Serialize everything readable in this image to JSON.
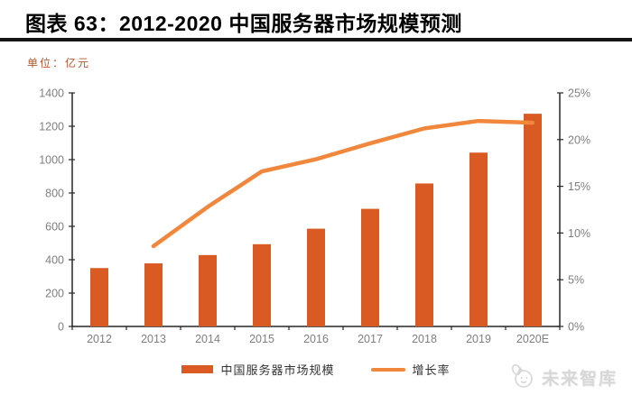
{
  "header": {
    "title": "图表 63：2012-2020 中国服务器市场规模预测"
  },
  "unit_label": "单位：亿元",
  "chart_data": {
    "type": "bar",
    "subtype": "bar+line-combo",
    "title": "图表 63：2012-2020 中国服务器市场规模预测",
    "ylabel_unit": "亿元",
    "categories": [
      "2012",
      "2013",
      "2014",
      "2015",
      "2016",
      "2017",
      "2018",
      "2019",
      "2020E"
    ],
    "series": [
      {
        "name": "中国服务器市场规模",
        "type": "bar",
        "axis": "left",
        "color": "#da5a24",
        "values": [
          350,
          378,
          428,
          493,
          586,
          705,
          857,
          1042,
          1275
        ]
      },
      {
        "name": "增长率",
        "type": "line",
        "axis": "right",
        "color": "#f0873c",
        "values": [
          null,
          8.6,
          12.8,
          16.6,
          17.9,
          19.6,
          21.2,
          22.0,
          21.8
        ]
      }
    ],
    "left_axis": {
      "min": 0,
      "max": 1400,
      "step": 200,
      "tick_labels": [
        "0",
        "200",
        "400",
        "600",
        "800",
        "1000",
        "1200",
        "1400"
      ]
    },
    "right_axis": {
      "min": 0,
      "max": 25,
      "step": 5,
      "suffix": "%",
      "tick_labels": [
        "0%",
        "5%",
        "10%",
        "15%",
        "20%",
        "25%"
      ]
    },
    "grid": false,
    "legend_position": "bottom",
    "axis_text_color": "#7f7f7f"
  },
  "watermark": {
    "text": "未来智库",
    "icon": "cat-mascot-outline-icon"
  }
}
